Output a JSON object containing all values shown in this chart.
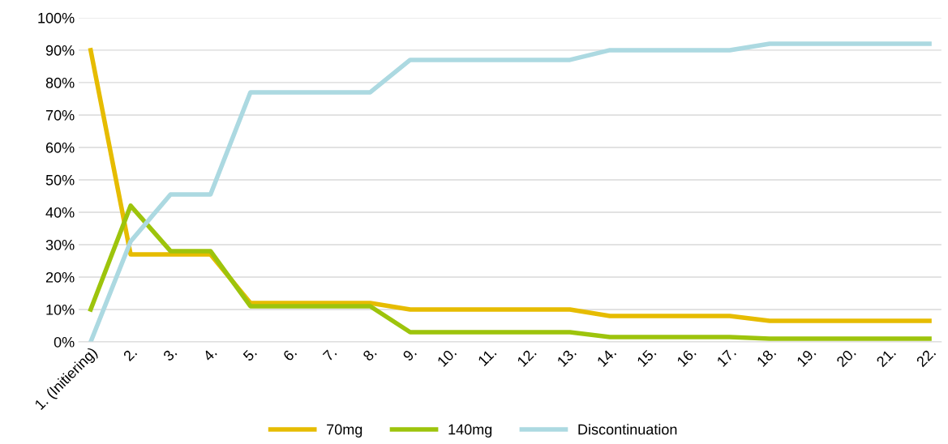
{
  "chart_data": {
    "type": "line",
    "categories": [
      "1. (Initiering)",
      "2.",
      "3.",
      "4.",
      "5.",
      "6.",
      "7.",
      "8.",
      "9.",
      "10.",
      "11.",
      "12.",
      "13.",
      "14.",
      "15.",
      "16.",
      "17.",
      "18.",
      "19.",
      "20.",
      "21.",
      "22."
    ],
    "series": [
      {
        "name": "70mg",
        "color": "#e6bc00",
        "values": [
          90,
          27,
          27,
          27,
          12,
          12,
          12,
          12,
          10,
          10,
          10,
          10,
          10,
          8,
          8,
          8,
          8,
          6.5,
          6.5,
          6.5,
          6.5,
          6.5
        ]
      },
      {
        "name": "140mg",
        "color": "#9dc40c",
        "values": [
          10,
          42,
          28,
          28,
          11,
          11,
          11,
          11,
          3,
          3,
          3,
          3,
          3,
          1.5,
          1.5,
          1.5,
          1.5,
          1,
          1,
          1,
          1,
          1
        ]
      },
      {
        "name": "Discontinuation",
        "color": "#acd9e1",
        "values": [
          0,
          31,
          45.5,
          45.5,
          77,
          77,
          77,
          77,
          87,
          87,
          87,
          87,
          87,
          90,
          90,
          90,
          90,
          92,
          92,
          92,
          92,
          92
        ]
      }
    ],
    "ylim": [
      0,
      100
    ],
    "yticks": [
      {
        "value": 0,
        "label": "0%"
      },
      {
        "value": 10,
        "label": "10%"
      },
      {
        "value": 20,
        "label": "20%"
      },
      {
        "value": 30,
        "label": "30%"
      },
      {
        "value": 40,
        "label": "40%"
      },
      {
        "value": 50,
        "label": "50%"
      },
      {
        "value": 60,
        "label": "60%"
      },
      {
        "value": 70,
        "label": "70%"
      },
      {
        "value": 80,
        "label": "80%"
      },
      {
        "value": 90,
        "label": "90%"
      },
      {
        "value": 100,
        "label": "100%"
      }
    ],
    "grid": "y",
    "legend": "bottom",
    "marker": "none",
    "line_style": "solid"
  }
}
